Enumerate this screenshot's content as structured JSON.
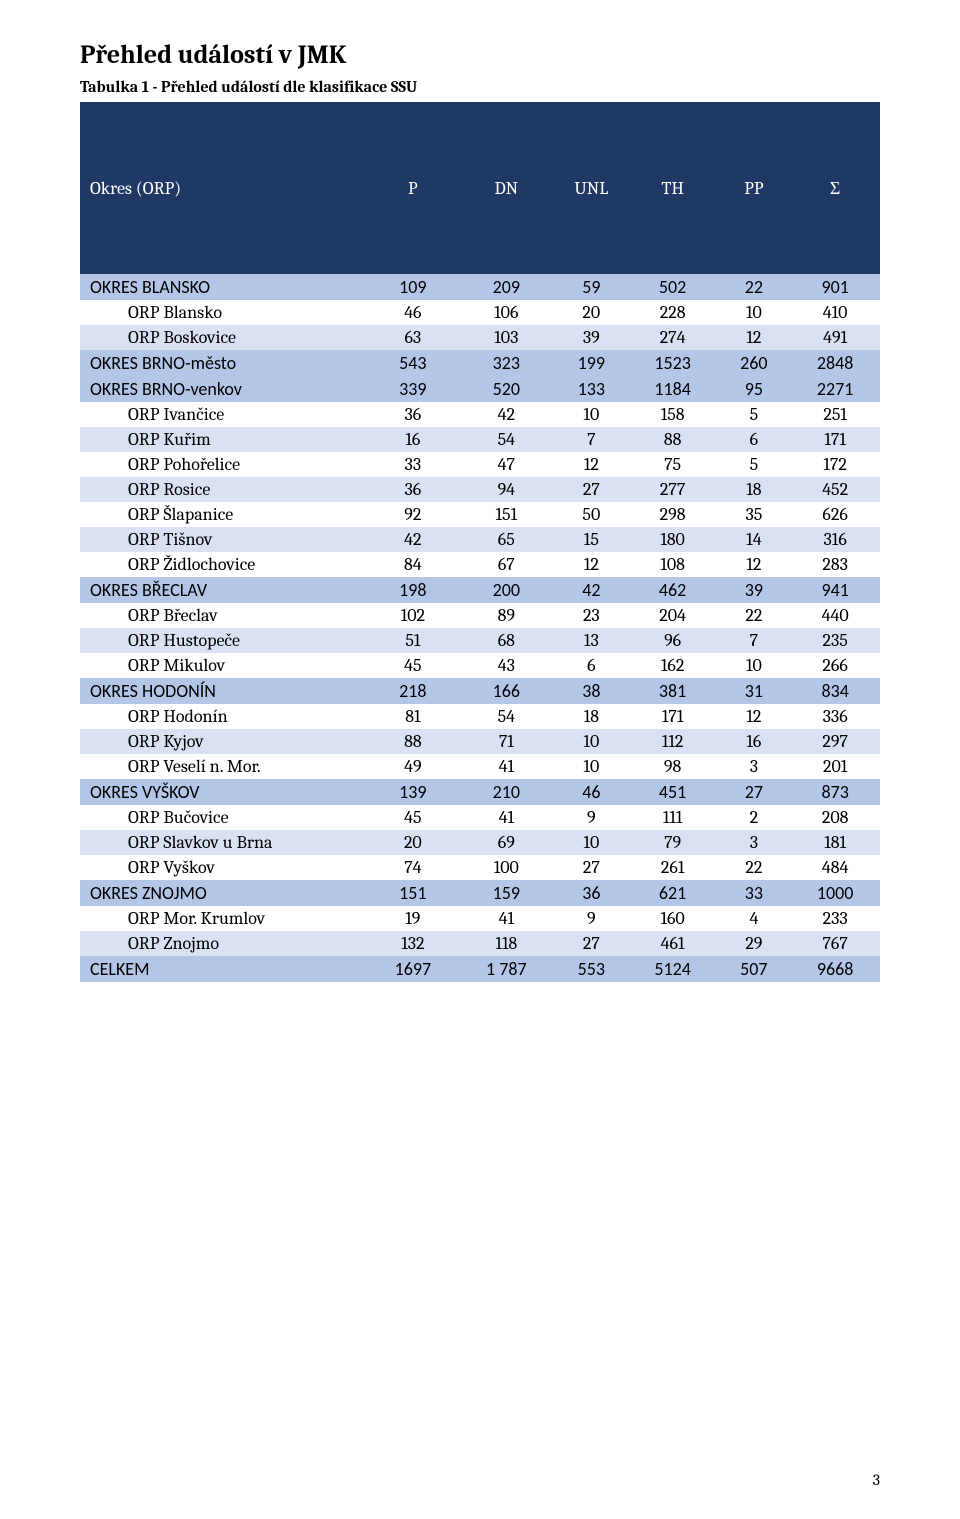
{
  "page": {
    "title": "Přehled událostí v JMK",
    "caption": "Tabulka 1 - Přehled událostí dle klasifikace SSU",
    "page_number": "3"
  },
  "colors": {
    "header_bg": "#1f3864",
    "header_text": "#ffffff",
    "summary_bg": "#b4c6e7",
    "stripe_even": "#d9e1f2",
    "stripe_odd": "#ffffff",
    "text": "#000000"
  },
  "table": {
    "columns": [
      "Okres (ORP)",
      "P",
      "DN",
      "UNL",
      "TH",
      "PP",
      "Σ"
    ],
    "rows": [
      {
        "type": "summary",
        "label": "OKRES BLANSKO",
        "vals": [
          "109",
          "209",
          "59",
          "502",
          "22",
          "901"
        ]
      },
      {
        "type": "detail",
        "stripe": "odd",
        "label": "ORP Blansko",
        "vals": [
          "46",
          "106",
          "20",
          "228",
          "10",
          "410"
        ]
      },
      {
        "type": "detail",
        "stripe": "even",
        "label": "ORP Boskovice",
        "vals": [
          "63",
          "103",
          "39",
          "274",
          "12",
          "491"
        ]
      },
      {
        "type": "summary",
        "label": "OKRES BRNO-město",
        "vals": [
          "543",
          "323",
          "199",
          "1523",
          "260",
          "2848"
        ]
      },
      {
        "type": "summary",
        "label": "OKRES BRNO-venkov",
        "vals": [
          "339",
          "520",
          "133",
          "1184",
          "95",
          "2271"
        ]
      },
      {
        "type": "detail",
        "stripe": "odd",
        "label": "ORP Ivančice",
        "vals": [
          "36",
          "42",
          "10",
          "158",
          "5",
          "251"
        ]
      },
      {
        "type": "detail",
        "stripe": "even",
        "label": "ORP Kuřim",
        "vals": [
          "16",
          "54",
          "7",
          "88",
          "6",
          "171"
        ]
      },
      {
        "type": "detail",
        "stripe": "odd",
        "label": "ORP Pohořelice",
        "vals": [
          "33",
          "47",
          "12",
          "75",
          "5",
          "172"
        ]
      },
      {
        "type": "detail",
        "stripe": "even",
        "label": "ORP Rosice",
        "vals": [
          "36",
          "94",
          "27",
          "277",
          "18",
          "452"
        ]
      },
      {
        "type": "detail",
        "stripe": "odd",
        "label": "ORP Šlapanice",
        "vals": [
          "92",
          "151",
          "50",
          "298",
          "35",
          "626"
        ]
      },
      {
        "type": "detail",
        "stripe": "even",
        "label": "ORP Tišnov",
        "vals": [
          "42",
          "65",
          "15",
          "180",
          "14",
          "316"
        ]
      },
      {
        "type": "detail",
        "stripe": "odd",
        "label": "ORP Židlochovice",
        "vals": [
          "84",
          "67",
          "12",
          "108",
          "12",
          "283"
        ]
      },
      {
        "type": "summary",
        "label": "OKRES BŘECLAV",
        "vals": [
          "198",
          "200",
          "42",
          "462",
          "39",
          "941"
        ]
      },
      {
        "type": "detail",
        "stripe": "odd",
        "label": "ORP Břeclav",
        "vals": [
          "102",
          "89",
          "23",
          "204",
          "22",
          "440"
        ]
      },
      {
        "type": "detail",
        "stripe": "even",
        "label": "ORP Hustopeče",
        "vals": [
          "51",
          "68",
          "13",
          "96",
          "7",
          "235"
        ]
      },
      {
        "type": "detail",
        "stripe": "odd",
        "label": "ORP Mikulov",
        "vals": [
          "45",
          "43",
          "6",
          "162",
          "10",
          "266"
        ]
      },
      {
        "type": "summary",
        "label": "OKRES HODONÍN",
        "vals": [
          "218",
          "166",
          "38",
          "381",
          "31",
          "834"
        ]
      },
      {
        "type": "detail",
        "stripe": "odd",
        "label": "ORP Hodonín",
        "vals": [
          "81",
          "54",
          "18",
          "171",
          "12",
          "336"
        ]
      },
      {
        "type": "detail",
        "stripe": "even",
        "label": "ORP Kyjov",
        "vals": [
          "88",
          "71",
          "10",
          "112",
          "16",
          "297"
        ]
      },
      {
        "type": "detail",
        "stripe": "odd",
        "label": "ORP Veselí n. Mor.",
        "vals": [
          "49",
          "41",
          "10",
          "98",
          "3",
          "201"
        ]
      },
      {
        "type": "summary",
        "label": "OKRES VYŠKOV",
        "vals": [
          "139",
          "210",
          "46",
          "451",
          "27",
          "873"
        ]
      },
      {
        "type": "detail",
        "stripe": "odd",
        "label": "ORP Bučovice",
        "vals": [
          "45",
          "41",
          "9",
          "111",
          "2",
          "208"
        ]
      },
      {
        "type": "detail",
        "stripe": "even",
        "label": "ORP Slavkov u Brna",
        "vals": [
          "20",
          "69",
          "10",
          "79",
          "3",
          "181"
        ]
      },
      {
        "type": "detail",
        "stripe": "odd",
        "label": "ORP Vyškov",
        "vals": [
          "74",
          "100",
          "27",
          "261",
          "22",
          "484"
        ]
      },
      {
        "type": "summary",
        "label": "OKRES ZNOJMO",
        "vals": [
          "151",
          "159",
          "36",
          "621",
          "33",
          "1000"
        ]
      },
      {
        "type": "detail",
        "stripe": "odd",
        "label": "ORP Mor. Krumlov",
        "vals": [
          "19",
          "41",
          "9",
          "160",
          "4",
          "233"
        ]
      },
      {
        "type": "detail",
        "stripe": "even",
        "label": "ORP Znojmo",
        "vals": [
          "132",
          "118",
          "27",
          "461",
          "29",
          "767"
        ]
      },
      {
        "type": "summary",
        "label": "CELKEM",
        "vals": [
          "1697",
          "1 787",
          "553",
          "5124",
          "507",
          "9668"
        ]
      }
    ]
  }
}
